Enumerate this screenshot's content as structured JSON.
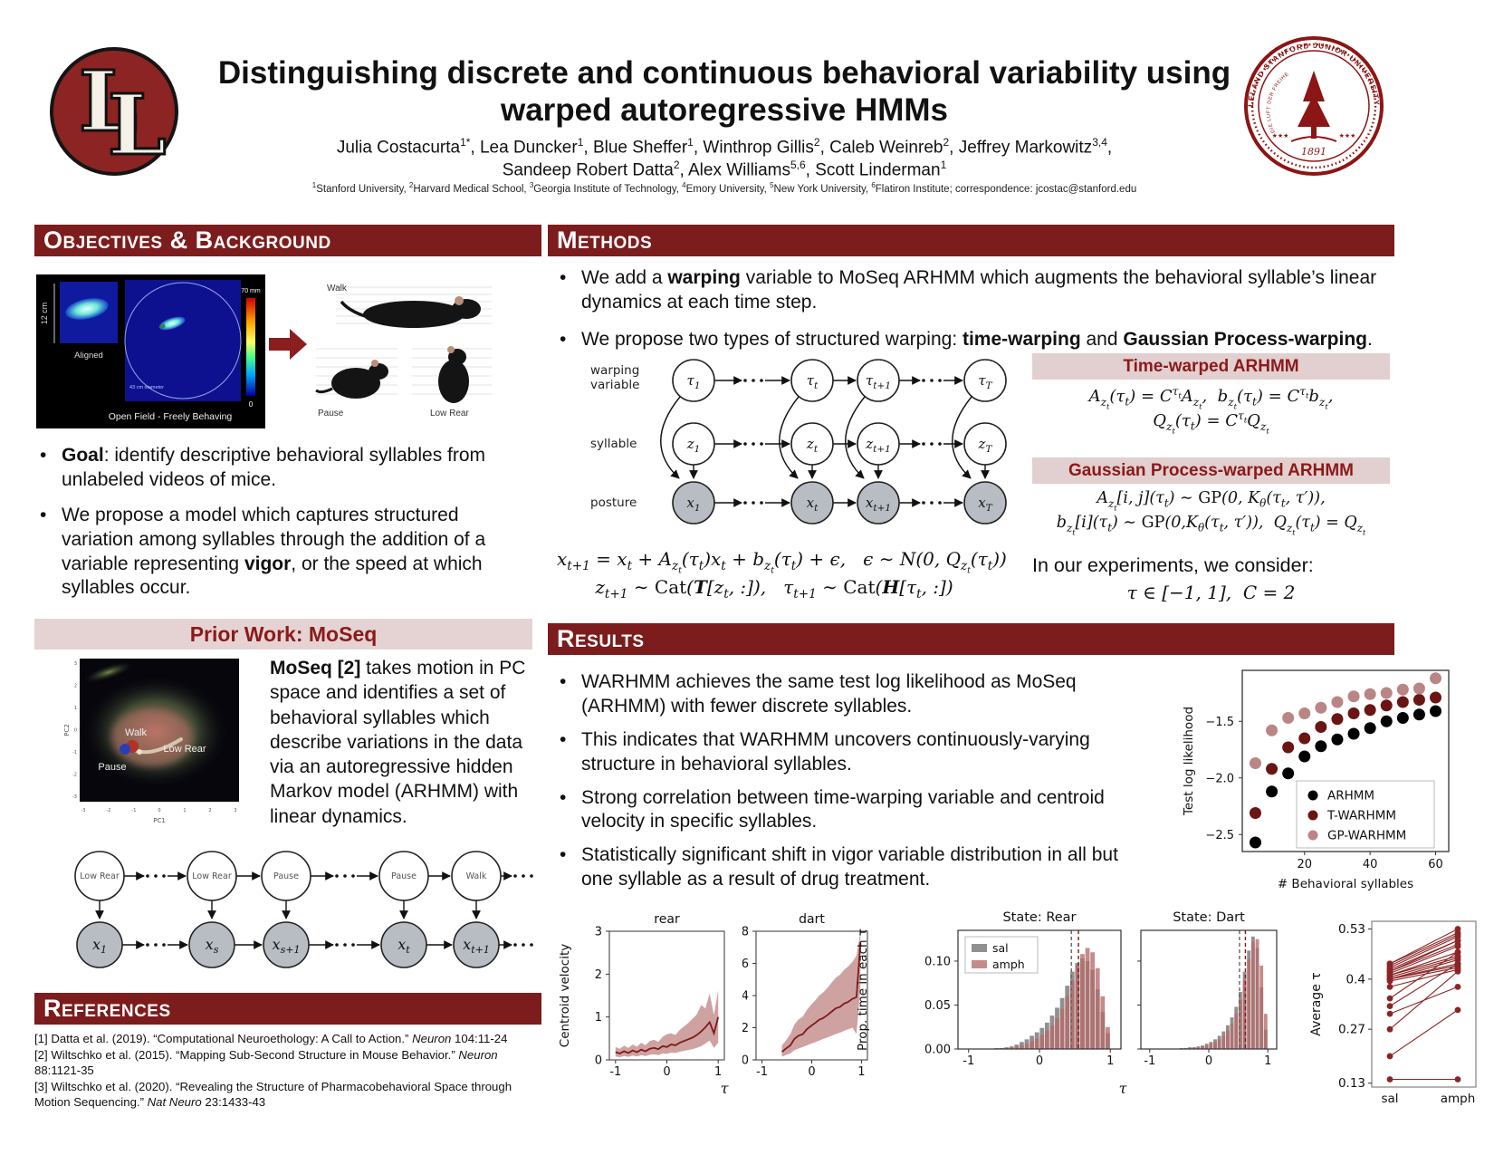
{
  "header": {
    "title_line1": "Distinguishing discrete and continuous behavioral variability using",
    "title_line2": "warped autoregressive HMMs",
    "authors_line1": "Julia Costacurta<sup>1*</sup>, Lea Duncker<sup>1</sup>, Blue Sheffer<sup>1</sup>, Winthrop Gillis<sup>2</sup>, Caleb Weinreb<sup>2</sup>, Jeffrey Markowitz<sup>3,4</sup>,",
    "authors_line2": "Sandeep Robert Datta<sup>2</sup>, Alex Williams<sup>5,6</sup>, Scott Linderman<sup>1</sup>",
    "affiliations": "<sup>1</sup>Stanford University, <sup>2</sup>Harvard Medical School, <sup>3</sup>Georgia Institute of Technology, <sup>4</sup>Emory University, <sup>5</sup>New York University, <sup>6</sup>Flatiron Institute; correspondence: jcostac@stanford.edu",
    "logo_letter": "L",
    "seal_ring_text": "LELAND STANFORD JUNIOR UNIVERSITY",
    "seal_motto": "DIE LUFT DER FREIHEIT WEHT",
    "seal_year": "1891",
    "seal_stars": "★★★"
  },
  "sections": {
    "objectives": "Objectives & Background",
    "methods": "Methods",
    "results": "Results",
    "references": "References"
  },
  "objectives": {
    "b1_bold": "Goal",
    "b1_rest": ": identify descriptive behavioral syllables from unlabeled videos of mice.",
    "b2_pre": "We propose a model which captures structured variation among syllables through the addition of a variable representing ",
    "b2_bold": "vigor",
    "b2_post": ", or the speed at which syllables occur.",
    "figure": {
      "scale_label": "12 cm",
      "aligned_label": "Aligned",
      "caption": "Open Field - Freely Behaving",
      "colorbar_max": "70 mm",
      "colorbar_min": "0",
      "diameter_label": "43 cm diameter",
      "mouse_walk": "Walk",
      "mouse_pause": "Pause",
      "mouse_lowrear": "Low Rear"
    }
  },
  "prior_work": {
    "title": "Prior Work: MoSeq",
    "text_bold": "MoSeq [2]",
    "text_rest": " takes motion in PC space and identifies a set of behavioral syllables which describe variations in the data via an autoregressive hidden Markov model (ARHMM) with linear dynamics.",
    "pc_plot": {
      "xlabel": "PC1",
      "ylabel": "PC2",
      "xticks": [
        "-3",
        "-2",
        "-1",
        "0",
        "1",
        "2",
        "3"
      ],
      "yticks": [
        "3",
        "2",
        "1",
        "0",
        "-1",
        "-2",
        "-3"
      ],
      "label_walk": "Walk",
      "label_lowrear": "Low Rear",
      "label_pause": "Pause"
    }
  },
  "methods": {
    "b1_pre": "We add a ",
    "b1_bold": "warping",
    "b1_post": " variable to MoSeq ARHMM which augments the behavioral syllable’s linear dynamics at each time step.",
    "b2_pre": "We propose two types of structured warping: ",
    "b2_bold1": "time-warping",
    "b2_mid": " and ",
    "b2_bold2": "Gaussian Process-warping",
    "b2_post": ".",
    "eq_main": "x<sub>t+1</sub> = x<sub>t</sub> + A<sub>z<sub>t</sub></sub>(τ<sub>t</sub>)x<sub>t</sub> + b<sub>z<sub>t</sub></sub>(τ<sub>t</sub>) + ϵ,&nbsp;&nbsp; ϵ ∼ N(0, Q<sub>z<sub>t</sub></sub>(τ<sub>t</sub>))",
    "eq_cat": "z<sub>t+1</sub> ∼ <span class=rm>Cat</span>(<b>T</b>[z<sub>t</sub>, :]),&nbsp;&nbsp; τ<sub>t+1</sub> ∼ <span class=rm>Cat</span>(<b>H</b>[τ<sub>t</sub>, :])",
    "tw_title": "Time-warped ARHMM",
    "tw_eq1": "A<sub>z<sub>t</sub></sub>(τ<sub>t</sub>) = C<sup>τ<sub>t</sub></sup>A<sub>z<sub>t</sub></sub>,&nbsp; b<sub>z<sub>t</sub></sub>(τ<sub>t</sub>) = C<sup>τ<sub>t</sub></sup>b<sub>z<sub>t</sub></sub>,",
    "tw_eq2": "Q<sub>z<sub>t</sub></sub>(τ<sub>t</sub>) = C<sup>τ<sub>t</sub></sup>Q<sub>z<sub>t</sub></sub>",
    "gp_title": "Gaussian Process-warped ARHMM",
    "gp_eq1": "A<sub>z<sub>t</sub></sub>[i, j](τ<sub>t</sub>) ∼ <span class=rm>GP</span>(0, K<sub>θ</sub>(τ<sub>t</sub>, τ′)),",
    "gp_eq2": "b<sub>z<sub>t</sub></sub>[i](τ<sub>t</sub>) ∼ <span class=rm>GP</span>(0,K<sub>θ</sub>(τ<sub>t</sub>, τ′)),&nbsp; Q<sub>z<sub>t</sub></sub>(τ<sub>t</sub>) = Q<sub>z<sub>t</sub></sub>",
    "experiments_text": "In our experiments, we consider:",
    "experiments_eq": "τ ∈ [−1, 1],&nbsp; C = 2",
    "model_row_labels": [
      [
        "warping",
        "variable"
      ],
      [
        "syllable"
      ],
      [
        "posture"
      ]
    ]
  },
  "results": {
    "bullets": [
      "WARHMM achieves the same test log likelihood as MoSeq (ARHMM) with fewer discrete syllables.",
      "This indicates that WARHMM uncovers continuously-varying structure in behavioral syllables.",
      "Strong correlation between time-warping variable and centroid velocity in specific syllables.",
      "Statistically significant shift in vigor variable distribution in all but one syllable as a result of drug treatment."
    ]
  },
  "references": {
    "items": [
      "[1] Datta et al. (2019). “Computational Neuroethology: A Call to Action.” <i>Neuron</i> 104:11-24",
      "[2] Wiltschko et al. (2015). “Mapping Sub-Second Structure in Mouse Behavior.” <i>Neuron</i> 88:1121-35",
      "[3] Wiltschko et al. (2020). “Revealing the Structure of Pharmacobehavioral Space through Motion Sequencing.” <i>Nat Neuro</i> 23:1433-43"
    ]
  },
  "diagrams": {
    "warhmm": {
      "rows": [
        {
          "fill": "#ffffff",
          "nodes": [
            [
              "τ",
              "1"
            ],
            [
              "τ",
              "t"
            ],
            [
              "τ",
              "t+1"
            ],
            [
              "τ",
              "T"
            ]
          ]
        },
        {
          "fill": "#ffffff",
          "nodes": [
            [
              "z",
              "1"
            ],
            [
              "z",
              "t"
            ],
            [
              "z",
              "t+1"
            ],
            [
              "z",
              "T"
            ]
          ]
        },
        {
          "fill": "#b8bdc3",
          "nodes": [
            [
              "x",
              "1"
            ],
            [
              "x",
              "t"
            ],
            [
              "x",
              "t+1"
            ],
            [
              "x",
              "T"
            ]
          ]
        }
      ]
    },
    "moseq_chain": {
      "top": [
        "Low Rear",
        "Low Rear",
        "Pause",
        "Pause",
        "Walk"
      ],
      "bottom": [
        [
          "x",
          "1"
        ],
        [
          "x",
          "s"
        ],
        [
          "x",
          "s+1"
        ],
        [
          "x",
          "t"
        ],
        [
          "x",
          "t+1"
        ]
      ]
    }
  },
  "chart_data": [
    {
      "id": "loglik",
      "type": "scatter",
      "xlabel": "# Behavioral syllables",
      "ylabel": "Test log likelihood",
      "xlim": [
        1,
        64
      ],
      "ylim": [
        -2.65,
        -1.05
      ],
      "xticks": [
        [
          20,
          "20"
        ],
        [
          40,
          "40"
        ],
        [
          60,
          "60"
        ]
      ],
      "yticks": [
        [
          -1.5,
          "−1.5"
        ],
        [
          -2.0,
          "−2.0"
        ],
        [
          -2.5,
          "−2.5"
        ]
      ],
      "x": [
        5,
        10,
        15,
        20,
        25,
        30,
        35,
        40,
        45,
        50,
        55,
        60
      ],
      "series": [
        {
          "name": "ARHMM",
          "color": "#000000",
          "values": [
            -2.57,
            -2.12,
            -1.96,
            -1.81,
            -1.72,
            -1.66,
            -1.61,
            -1.56,
            -1.5,
            -1.47,
            -1.44,
            -1.41
          ]
        },
        {
          "name": "T-WARHMM",
          "color": "#6b1414",
          "values": [
            -2.31,
            -1.92,
            -1.73,
            -1.65,
            -1.55,
            -1.48,
            -1.43,
            -1.4,
            -1.36,
            -1.33,
            -1.31,
            -1.29
          ]
        },
        {
          "name": "GP-WARHMM",
          "color": "#b98585",
          "values": [
            -1.87,
            -1.58,
            -1.47,
            -1.43,
            -1.38,
            -1.33,
            -1.28,
            -1.26,
            -1.25,
            -1.22,
            -1.21,
            -1.12
          ]
        }
      ],
      "legend_position": "lower right"
    },
    {
      "id": "rear",
      "type": "line",
      "title": "rear",
      "ylabel": "Centroid velocity",
      "xlabel": "τ",
      "xlim": [
        -1.12,
        1.12
      ],
      "ylim": [
        0,
        3
      ],
      "xticks": [
        [
          -1,
          "-1"
        ],
        [
          0,
          "0"
        ],
        [
          1,
          "1"
        ]
      ],
      "yticks": [
        [
          0,
          "0"
        ],
        [
          1,
          "1"
        ],
        [
          2,
          "2"
        ],
        [
          3,
          "3"
        ]
      ],
      "line_color": "#7e1a1a",
      "band_color": "#a85555",
      "x": [
        -1,
        -0.917,
        -0.833,
        -0.75,
        -0.667,
        -0.583,
        -0.5,
        -0.417,
        -0.333,
        -0.25,
        -0.167,
        -0.083,
        0,
        0.083,
        0.167,
        0.25,
        0.333,
        0.417,
        0.5,
        0.583,
        0.667,
        0.75,
        0.833,
        0.917,
        1
      ],
      "mean": [
        0.18,
        0.15,
        0.2,
        0.16,
        0.22,
        0.18,
        0.24,
        0.2,
        0.26,
        0.28,
        0.25,
        0.32,
        0.3,
        0.36,
        0.34,
        0.4,
        0.44,
        0.48,
        0.52,
        0.58,
        0.66,
        0.76,
        0.88,
        0.62,
        1.0
      ],
      "lo": [
        0.08,
        0.06,
        0.09,
        0.07,
        0.1,
        0.08,
        0.11,
        0.09,
        0.12,
        0.13,
        0.11,
        0.15,
        0.14,
        0.17,
        0.16,
        0.19,
        0.21,
        0.23,
        0.25,
        0.28,
        0.32,
        0.38,
        0.45,
        0.28,
        0.4
      ],
      "hi": [
        0.3,
        0.26,
        0.33,
        0.28,
        0.36,
        0.31,
        0.4,
        0.34,
        0.44,
        0.47,
        0.42,
        0.54,
        0.6,
        0.62,
        0.58,
        0.7,
        0.78,
        0.86,
        0.96,
        1.06,
        1.28,
        1.2,
        1.55,
        1.05,
        1.62
      ]
    },
    {
      "id": "dart",
      "type": "line",
      "title": "dart",
      "xlim": [
        -1.12,
        1.12
      ],
      "ylim": [
        0,
        8
      ],
      "xticks": [
        [
          -1,
          "-1"
        ],
        [
          0,
          "0"
        ],
        [
          1,
          "1"
        ]
      ],
      "yticks": [
        [
          0,
          "0"
        ],
        [
          2,
          "2"
        ],
        [
          4,
          "4"
        ],
        [
          6,
          "6"
        ],
        [
          8,
          "8"
        ]
      ],
      "line_color": "#7e1a1a",
      "band_color": "#a85555",
      "x": [
        -0.6,
        -0.52,
        -0.43,
        -0.35,
        -0.27,
        -0.18,
        -0.1,
        -0.02,
        0.07,
        0.15,
        0.23,
        0.32,
        0.4,
        0.48,
        0.57,
        0.65,
        0.73,
        0.82,
        0.9,
        0.98
      ],
      "mean": [
        0.5,
        0.7,
        0.9,
        1.3,
        1.5,
        1.6,
        1.9,
        2.1,
        2.3,
        2.5,
        2.6,
        2.8,
        3.0,
        3.2,
        3.3,
        3.5,
        3.6,
        3.8,
        3.9,
        7.3
      ],
      "lo": [
        0.2,
        0.3,
        0.4,
        0.6,
        0.7,
        0.8,
        0.9,
        1.0,
        1.1,
        1.2,
        1.3,
        1.4,
        1.5,
        1.6,
        1.7,
        1.8,
        1.9,
        2.0,
        1.6,
        4.5
      ],
      "hi": [
        0.9,
        1.2,
        1.6,
        2.2,
        2.5,
        2.7,
        3.1,
        3.4,
        3.7,
        4.0,
        4.2,
        4.5,
        4.8,
        5.1,
        5.3,
        5.6,
        5.8,
        6.1,
        6.5,
        8.0
      ]
    },
    {
      "id": "hist_rear",
      "type": "bar",
      "title": "State: Rear",
      "ylabel": "Prop. time in each τ",
      "xlabel": "τ",
      "xlim": [
        -1.15,
        1.15
      ],
      "ylim": [
        0,
        0.135
      ],
      "xticks": [
        [
          -1,
          "-1"
        ],
        [
          0,
          "0"
        ],
        [
          1,
          "1"
        ]
      ],
      "yticks": [
        [
          0,
          "0.00"
        ],
        [
          0.05,
          "0.05"
        ],
        [
          0.1,
          "0.10"
        ]
      ],
      "show_ytick_labels": true,
      "show_legend": true,
      "legend": [
        {
          "name": "sal",
          "color": "#8a8a8a"
        },
        {
          "name": "amph",
          "color": "#b56a6a"
        }
      ],
      "bin_start": -1,
      "bin_width": 0.0714,
      "sal": [
        0,
        0,
        0,
        0,
        0,
        0.001,
        0.001,
        0.002,
        0.003,
        0.005,
        0.008,
        0.011,
        0.015,
        0.019,
        0.024,
        0.03,
        0.038,
        0.047,
        0.058,
        0.072,
        0.088,
        0.098,
        0.103,
        0.1,
        0.09,
        0.068,
        0.042,
        0.018
      ],
      "amph": [
        0,
        0,
        0,
        0,
        0,
        0,
        0.001,
        0.001,
        0.002,
        0.003,
        0.004,
        0.006,
        0.009,
        0.012,
        0.016,
        0.021,
        0.027,
        0.035,
        0.046,
        0.06,
        0.078,
        0.095,
        0.108,
        0.115,
        0.11,
        0.092,
        0.06,
        0.025
      ],
      "mean_sal": 0.45,
      "mean_amph": 0.55
    },
    {
      "id": "hist_dart",
      "type": "bar",
      "title": "State: Dart",
      "xlim": [
        -1.15,
        1.15
      ],
      "ylim": [
        0,
        0.135
      ],
      "xticks": [
        [
          -1,
          "-1"
        ],
        [
          0,
          "0"
        ],
        [
          1,
          "1"
        ]
      ],
      "yticks": [
        [
          0,
          "0.00"
        ],
        [
          0.05,
          "0.05"
        ],
        [
          0.1,
          "0.10"
        ]
      ],
      "show_ytick_labels": false,
      "show_legend": false,
      "legend": [
        {
          "name": "sal",
          "color": "#8a8a8a"
        },
        {
          "name": "amph",
          "color": "#b56a6a"
        }
      ],
      "bin_start": -1,
      "bin_width": 0.0714,
      "sal": [
        0,
        0,
        0,
        0,
        0,
        0,
        0,
        0.001,
        0.001,
        0.002,
        0.002,
        0.003,
        0.004,
        0.006,
        0.008,
        0.011,
        0.015,
        0.02,
        0.027,
        0.036,
        0.048,
        0.065,
        0.088,
        0.112,
        0.128,
        0.115,
        0.07,
        0.022
      ],
      "amph": [
        0,
        0,
        0,
        0,
        0,
        0,
        0,
        0,
        0.001,
        0.001,
        0.002,
        0.002,
        0.003,
        0.004,
        0.006,
        0.008,
        0.011,
        0.015,
        0.021,
        0.029,
        0.04,
        0.056,
        0.078,
        0.102,
        0.122,
        0.125,
        0.095,
        0.04
      ],
      "mean_sal": 0.52,
      "mean_amph": 0.62
    },
    {
      "id": "avg_tau",
      "type": "paired",
      "ylabel": "Average τ",
      "categories": [
        "sal",
        "amph"
      ],
      "ylim": [
        0.12,
        0.55
      ],
      "yticks": [
        [
          0.53,
          "0.53"
        ],
        [
          0.4,
          "0.4"
        ],
        [
          0.27,
          "0.27"
        ],
        [
          0.13,
          "0.13"
        ]
      ],
      "color": "#8b2525",
      "pairs": [
        [
          0.44,
          0.53
        ],
        [
          0.44,
          0.52
        ],
        [
          0.435,
          0.515
        ],
        [
          0.43,
          0.51
        ],
        [
          0.425,
          0.5
        ],
        [
          0.42,
          0.5
        ],
        [
          0.42,
          0.49
        ],
        [
          0.415,
          0.485
        ],
        [
          0.41,
          0.47
        ],
        [
          0.41,
          0.46
        ],
        [
          0.405,
          0.455
        ],
        [
          0.4,
          0.45
        ],
        [
          0.4,
          0.44
        ],
        [
          0.4,
          0.435
        ],
        [
          0.395,
          0.43
        ],
        [
          0.38,
          0.425
        ],
        [
          0.35,
          0.47
        ],
        [
          0.33,
          0.44
        ],
        [
          0.31,
          0.38
        ],
        [
          0.27,
          0.42
        ],
        [
          0.2,
          0.32
        ],
        [
          0.14,
          0.14
        ]
      ]
    }
  ]
}
